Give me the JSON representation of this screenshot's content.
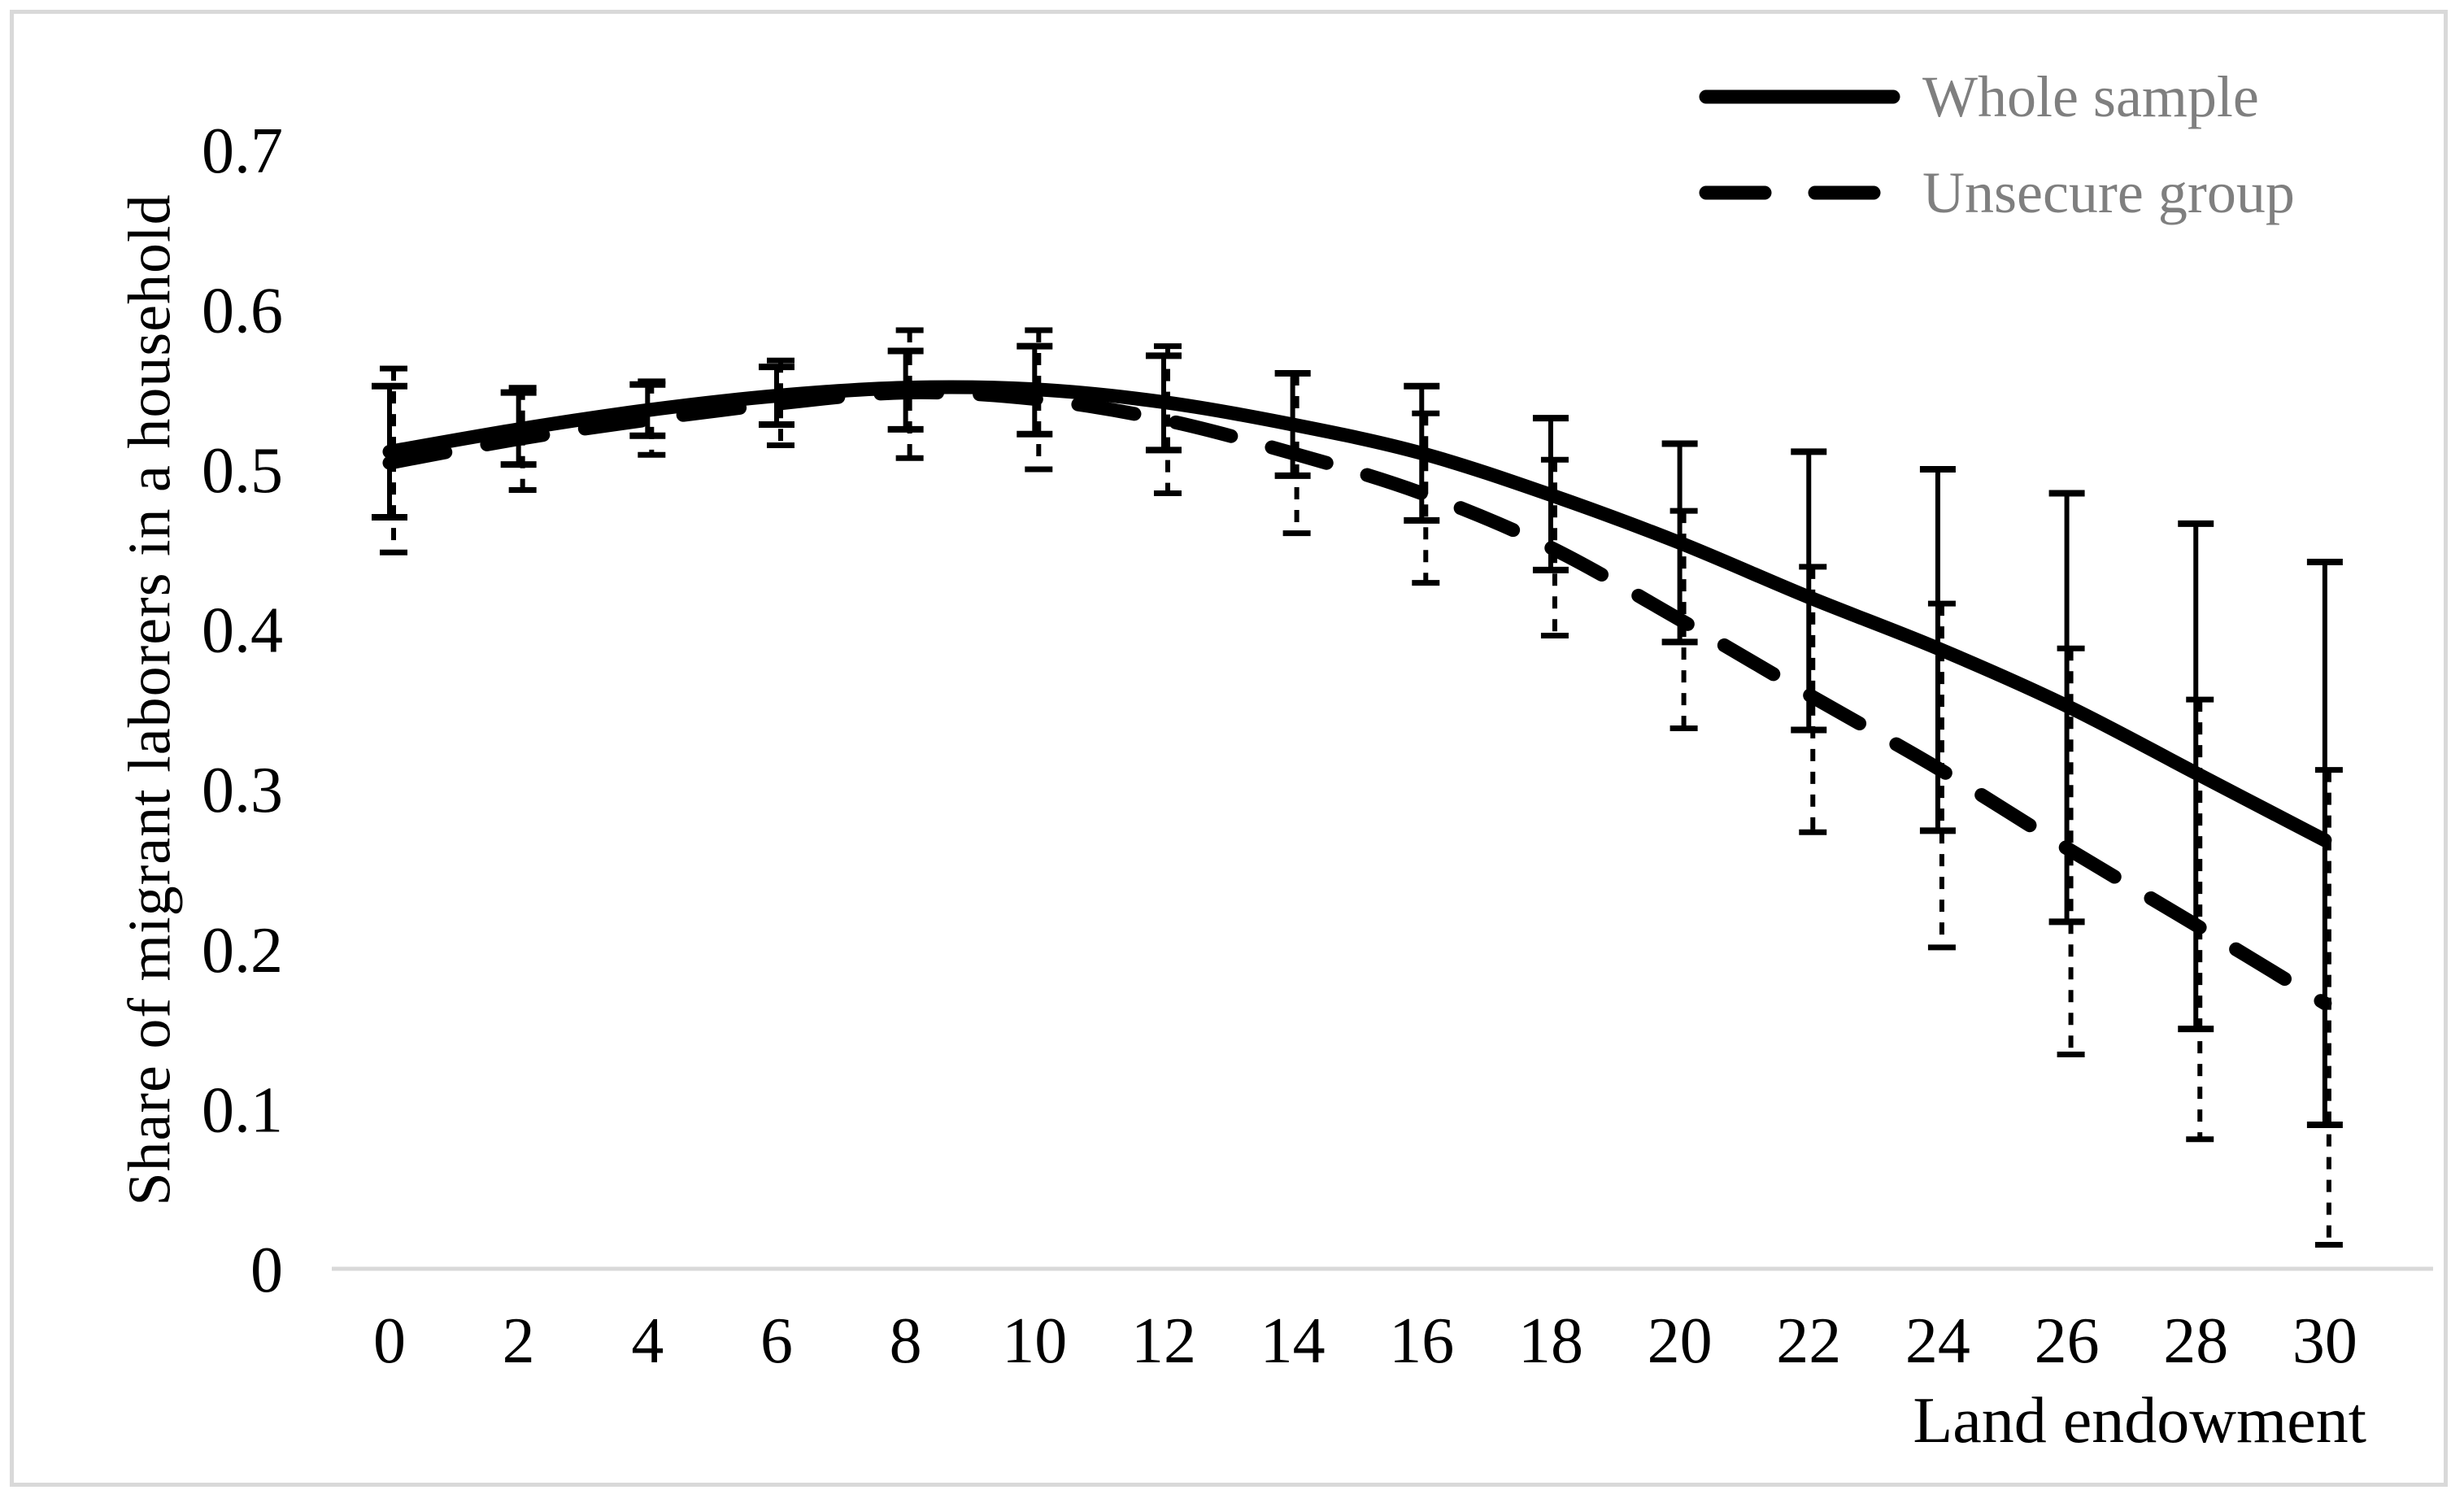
{
  "figure_type": "line chart with error bars",
  "colors": {
    "series_line": "#000000",
    "legend_text": "#7f7f7f",
    "axis_line": "#d9d9d9",
    "tick_text": "#000000",
    "frame_border": "#d9d9d9",
    "background": "#ffffff"
  },
  "legend": {
    "items": [
      {
        "label": "Whole sample",
        "style": "solid"
      },
      {
        "label": "Unsecure group",
        "style": "dashed"
      }
    ]
  },
  "chart_data": {
    "type": "line",
    "title": "",
    "xlabel": "Land endowment",
    "ylabel": "Share of migrant laborers in a household",
    "xlim": [
      0,
      30
    ],
    "ylim": [
      0,
      0.7
    ],
    "grid": false,
    "legend_position": "top-right",
    "x": [
      0,
      2,
      4,
      6,
      8,
      10,
      12,
      14,
      16,
      18,
      20,
      22,
      24,
      26,
      28,
      30
    ],
    "x_tick_labels": [
      "0",
      "2",
      "4",
      "6",
      "8",
      "10",
      "12",
      "14",
      "16",
      "18",
      "20",
      "22",
      "24",
      "26",
      "28",
      "30"
    ],
    "y_ticks": [
      0,
      0.1,
      0.2,
      0.3,
      0.4,
      0.5,
      0.6,
      0.7
    ],
    "y_tick_labels": [
      "0",
      "0.1",
      "0.2",
      "0.3",
      "0.4",
      "0.5",
      "0.6",
      "0.7"
    ],
    "series": [
      {
        "name": "Whole sample",
        "style": "solid",
        "values": [
          0.511,
          0.525,
          0.537,
          0.546,
          0.551,
          0.55,
          0.542,
          0.528,
          0.51,
          0.484,
          0.454,
          0.42,
          0.388,
          0.352,
          0.31,
          0.268
        ],
        "ci_low": [
          0.47,
          0.503,
          0.521,
          0.528,
          0.525,
          0.522,
          0.512,
          0.496,
          0.468,
          0.437,
          0.392,
          0.337,
          0.274,
          0.217,
          0.15,
          0.09
        ],
        "ci_high": [
          0.552,
          0.548,
          0.553,
          0.564,
          0.574,
          0.577,
          0.571,
          0.56,
          0.552,
          0.532,
          0.516,
          0.511,
          0.5,
          0.485,
          0.466,
          0.442
        ]
      },
      {
        "name": "Unsecure group",
        "style": "dashed",
        "values": [
          0.504,
          0.519,
          0.531,
          0.541,
          0.548,
          0.544,
          0.531,
          0.51,
          0.485,
          0.451,
          0.406,
          0.359,
          0.313,
          0.263,
          0.215,
          0.166
        ],
        "ci_low": [
          0.448,
          0.487,
          0.509,
          0.515,
          0.507,
          0.5,
          0.485,
          0.46,
          0.429,
          0.396,
          0.338,
          0.273,
          0.201,
          0.134,
          0.081,
          0.015
        ],
        "ci_high": [
          0.563,
          0.551,
          0.555,
          0.568,
          0.587,
          0.587,
          0.577,
          0.56,
          0.535,
          0.506,
          0.474,
          0.439,
          0.416,
          0.388,
          0.356,
          0.312
        ]
      }
    ]
  }
}
